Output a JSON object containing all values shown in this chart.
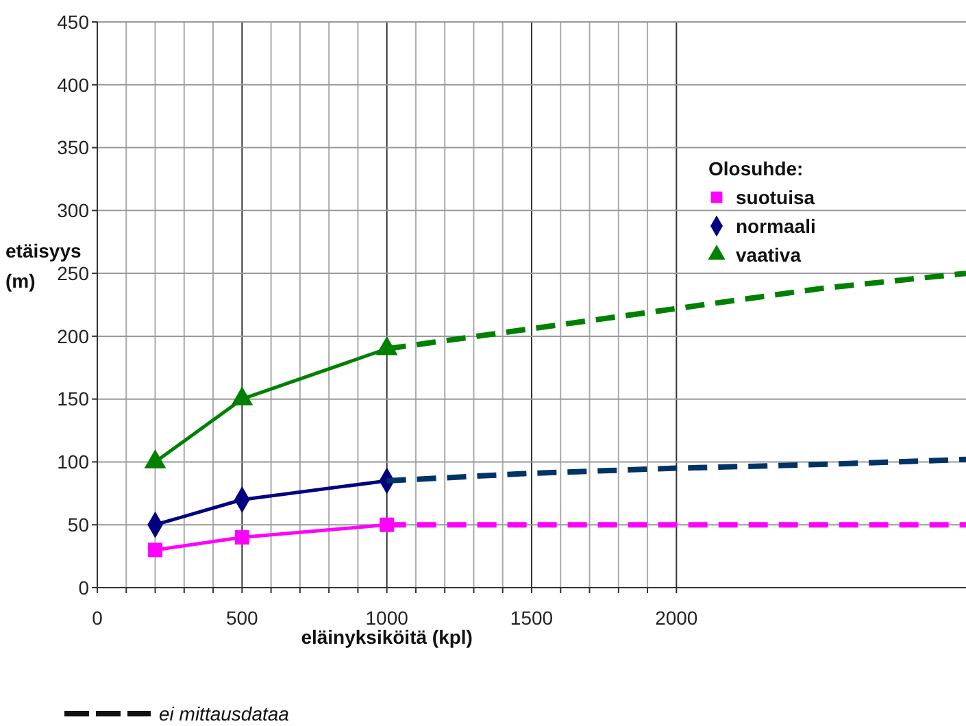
{
  "chart_data": {
    "type": "line",
    "xlabel": "eläinyksiköitä (kpl)",
    "ylabel": "etäisyys (m)",
    "legend_title": "Olosuhde:",
    "xlim": [
      0,
      3000
    ],
    "ylim": [
      0,
      450
    ],
    "xticks": [
      0,
      {
        "value": 100,
        "label": null
      },
      {
        "value": 200,
        "label": null
      },
      {
        "value": 300,
        "label": null
      },
      {
        "value": 400,
        "label": null
      },
      500,
      {
        "value": 600,
        "label": null
      },
      {
        "value": 700,
        "label": null
      },
      {
        "value": 800,
        "label": null
      },
      {
        "value": 900,
        "label": null
      },
      1000,
      {
        "value": 1100,
        "label": null
      },
      {
        "value": 1200,
        "label": null
      },
      {
        "value": 1300,
        "label": null
      },
      {
        "value": 1400,
        "label": null
      },
      1500,
      {
        "value": 1600,
        "label": null
      },
      {
        "value": 1700,
        "label": null
      },
      {
        "value": 1800,
        "label": null
      },
      {
        "value": 1900,
        "label": null
      },
      2000
    ],
    "yticks": [
      0,
      50,
      100,
      150,
      200,
      250,
      300,
      350,
      400,
      450
    ],
    "grid": true,
    "legend": "right",
    "series": [
      {
        "name": "suotuisa",
        "color": "#ff00ff",
        "marker": "square",
        "line_style": "solid",
        "x": [
          200,
          500,
          1000
        ],
        "values": [
          30,
          40,
          50
        ]
      },
      {
        "name": "normaali",
        "color": "#000080",
        "marker": "diamond",
        "line_style": "solid",
        "x": [
          200,
          500,
          1000
        ],
        "values": [
          50,
          70,
          85
        ]
      },
      {
        "name": "vaativa",
        "color": "#008000",
        "marker": "triangle",
        "line_style": "solid",
        "x": [
          200,
          500,
          1000
        ],
        "values": [
          100,
          150,
          190
        ]
      },
      {
        "color": "#ff00ff",
        "marker": "none",
        "line_style": "dashed",
        "x": [
          1000,
          3000
        ],
        "values": [
          50,
          50
        ]
      },
      {
        "color": "#003366",
        "marker": "none",
        "line_style": "dashed",
        "x": [
          1000,
          1500,
          2000,
          2500,
          3000
        ],
        "values": [
          85,
          91,
          95,
          98,
          102
        ]
      },
      {
        "color": "#008000",
        "marker": "none",
        "line_style": "dashed",
        "x": [
          1000,
          1500,
          2000,
          2500,
          3000
        ],
        "values": [
          190,
          206,
          222,
          238,
          250
        ]
      }
    ],
    "annotations": [
      "ei mittausdataa"
    ]
  }
}
